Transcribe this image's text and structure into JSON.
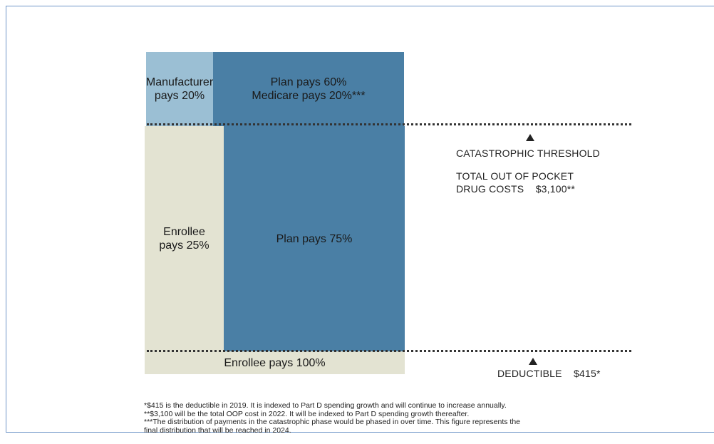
{
  "diagram": {
    "catastrophic": {
      "manufacturer": [
        "Manufacturer",
        "pays 20%"
      ],
      "plan_medicare": [
        "Plan pays 60%",
        "Medicare pays 20%***"
      ]
    },
    "initial": {
      "enrollee": [
        "Enrollee",
        "pays 25%"
      ],
      "plan": "Plan pays 75%"
    },
    "deductible_phase": "Enrollee pays 100%",
    "catastrophic_threshold": {
      "title": "CATASTROPHIC THRESHOLD",
      "line1": "TOTAL OUT OF POCKET",
      "line2": "DRUG COSTS    $3,100**"
    },
    "deductible": "DEDUCTIBLE    $415*"
  },
  "footnotes": [
    "*$415 is the deductible in 2019. It is indexed to Part D spending growth and will continue to increase annually.",
    "**$3,100 will be the total OOP cost in 2022. It will be indexed to Part D spending growth thereafter.",
    "***The distribution of payments in the catastrophic phase would be phased in over time. This figure represents the",
    "final distribution that will be reached in 2024."
  ],
  "colors": {
    "manufacturer": "#9bbfd4",
    "plan": "#4a7fa5",
    "enrollee": "#e3e3d2"
  }
}
